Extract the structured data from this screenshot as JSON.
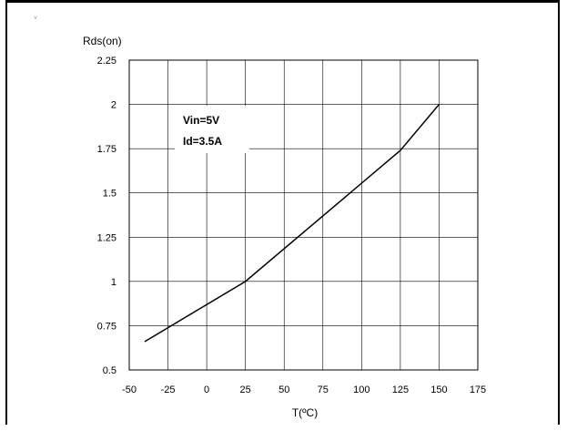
{
  "chart_data": {
    "type": "line",
    "title": "",
    "xlabel": "T(ºC)",
    "ylabel": "Rds(on)",
    "xlim": [
      -50,
      175
    ],
    "ylim": [
      0.5,
      2.25
    ],
    "x_ticks": [
      "-50",
      "-25",
      "0",
      "25",
      "50",
      "75",
      "100",
      "125",
      "150",
      "175"
    ],
    "y_ticks": [
      "2.25",
      "2",
      "1.75",
      "1.5",
      "1.25",
      "1",
      "0.75",
      "0.5"
    ],
    "grid": true,
    "legend": "none",
    "annotation_lines": [
      "Vin=5V",
      "Id=3.5A"
    ],
    "series": [
      {
        "x": [
          -40,
          25,
          125,
          150
        ],
        "y": [
          0.66,
          1.0,
          1.74,
          2.0
        ],
        "color": "#000000"
      }
    ]
  }
}
